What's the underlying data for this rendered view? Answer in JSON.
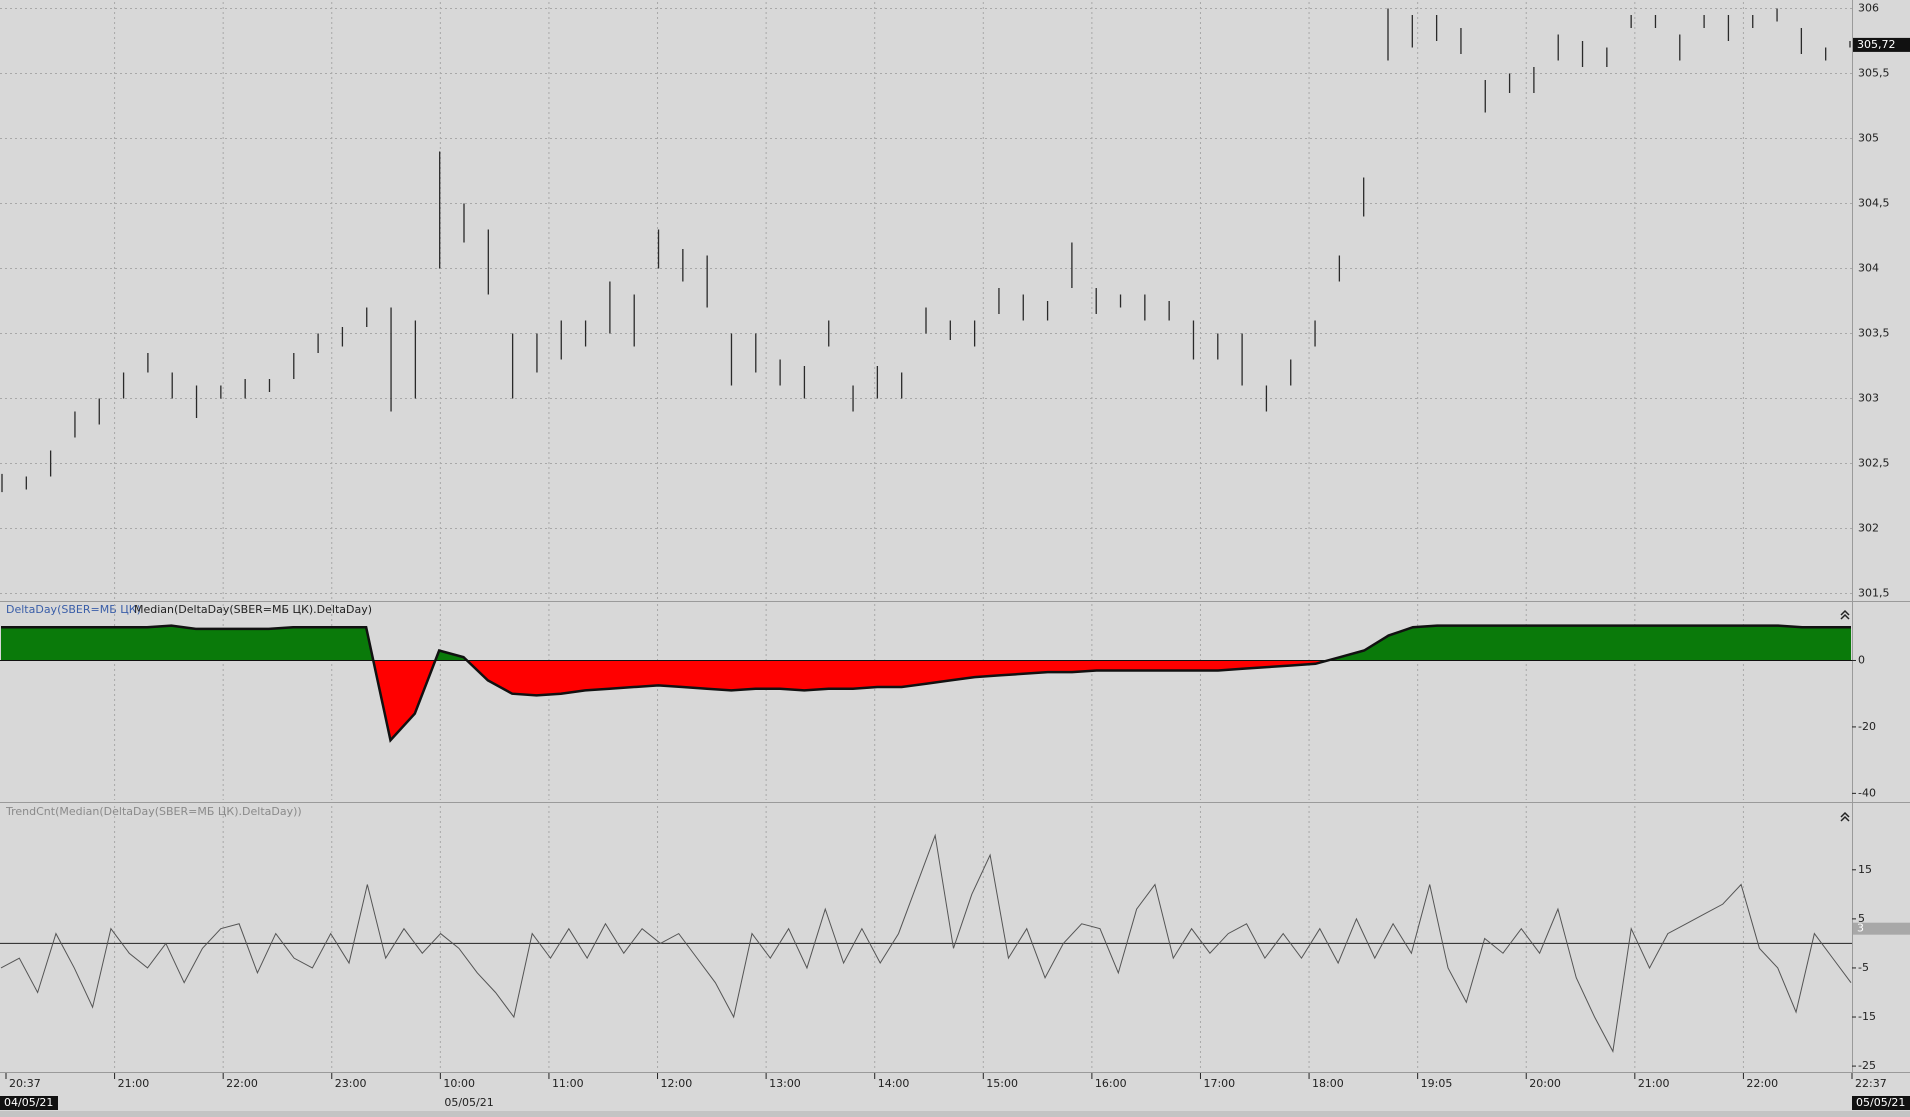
{
  "chart_data": [
    {
      "type": "range",
      "color": "#2a2a2a",
      "high": [
        302.42,
        302.4,
        302.6,
        302.9,
        303.0,
        303.2,
        303.35,
        303.2,
        303.1,
        303.1,
        303.15,
        303.15,
        303.35,
        303.5,
        303.55,
        303.7,
        303.7,
        303.6,
        304.9,
        304.5,
        304.3,
        303.5,
        303.5,
        303.6,
        303.6,
        303.9,
        303.8,
        304.3,
        304.15,
        304.1,
        303.5,
        303.5,
        303.3,
        303.25,
        303.6,
        303.1,
        303.25,
        303.2,
        303.7,
        303.6,
        303.6,
        303.85,
        303.8,
        303.75,
        304.2,
        303.85,
        303.8,
        303.8,
        303.75,
        303.6,
        303.5,
        303.5,
        303.1,
        303.3,
        303.6,
        304.1,
        304.7,
        306.0,
        305.95,
        305.95,
        305.85,
        305.45,
        305.5,
        305.55,
        305.8,
        305.75,
        305.7,
        305.95,
        305.95,
        305.8,
        305.95,
        305.95,
        305.95,
        306.0,
        305.85,
        305.7,
        305.75
      ],
      "low": [
        302.28,
        302.3,
        302.4,
        302.7,
        302.8,
        303.0,
        303.2,
        303.0,
        302.85,
        303.0,
        303.0,
        303.05,
        303.15,
        303.35,
        303.4,
        303.55,
        302.9,
        303.0,
        304.0,
        304.2,
        303.8,
        303.0,
        303.2,
        303.3,
        303.4,
        303.5,
        303.4,
        304.0,
        303.9,
        303.7,
        303.1,
        303.2,
        303.1,
        303.0,
        303.4,
        302.9,
        303.0,
        303.0,
        303.5,
        303.45,
        303.4,
        303.65,
        303.6,
        303.6,
        303.85,
        303.65,
        303.7,
        303.6,
        303.6,
        303.3,
        303.3,
        303.1,
        302.9,
        303.1,
        303.4,
        303.9,
        304.4,
        305.6,
        305.7,
        305.75,
        305.65,
        305.2,
        305.35,
        305.35,
        305.6,
        305.55,
        305.55,
        305.85,
        305.85,
        305.6,
        305.85,
        305.75,
        305.85,
        305.9,
        305.65,
        305.6,
        305.7
      ],
      "ylim": [
        301.45,
        306.05
      ],
      "yticks": [
        306,
        {
          "value": 305.5,
          "label": "305,5"
        },
        305,
        {
          "value": 304.5,
          "label": "304,5"
        },
        304,
        {
          "value": 303.5,
          "label": "303,5"
        },
        303,
        {
          "value": 302.5,
          "label": "302,5"
        },
        302,
        {
          "value": 301.5,
          "label": "301,5"
        }
      ],
      "last": 305.72,
      "last_label": "305,72",
      "grid": true
    },
    {
      "type": "area",
      "title": "DeltaDay(SBER=МБ ЦК)",
      "subtitle": "Median(DeltaDay(SBER=МБ ЦК).DeltaDay)",
      "positive_color": "#0a7a0a",
      "negative_color": "#ff0000",
      "values": [
        10,
        10,
        10,
        10,
        10,
        10,
        10,
        10.5,
        9.5,
        9.5,
        9.5,
        9.5,
        10,
        10,
        10,
        10,
        -24,
        -16,
        3,
        1,
        -6,
        -10,
        -10.5,
        -10,
        -9,
        -8.5,
        -8,
        -7.5,
        -8,
        -8.5,
        -9,
        -8.5,
        -8.5,
        -9,
        -8.5,
        -8.5,
        -8,
        -8,
        -7,
        -6,
        -5,
        -4.5,
        -4,
        -3.5,
        -3.5,
        -3,
        -3,
        -3,
        -3,
        -3,
        -3,
        -2.5,
        -2,
        -1.5,
        -1,
        1,
        3,
        7.5,
        10,
        10.5,
        10.5,
        10.5,
        10.5,
        10.5,
        10.5,
        10.5,
        10.5,
        10.5,
        10.5,
        10.5,
        10.5,
        10.5,
        10.5,
        10.5,
        10,
        10,
        10
      ],
      "ylim": [
        -42,
        17
      ],
      "yticks": [
        0,
        -20,
        -40
      ]
    },
    {
      "type": "line",
      "title": "TrendCnt(Median(DeltaDay(SBER=МБ ЦК).DeltaDay))",
      "color": "#555555",
      "values": [
        -5,
        -3,
        -10,
        2,
        -5,
        -13,
        3,
        -2,
        -5,
        0,
        -8,
        -1,
        3,
        4,
        -6,
        2,
        -3,
        -5,
        2,
        -4,
        12,
        -3,
        3,
        -2,
        2,
        -1,
        -6,
        -10,
        -15,
        2,
        -3,
        3,
        -3,
        4,
        -2,
        3,
        0,
        2,
        -3,
        -8,
        -15,
        2,
        -3,
        3,
        -5,
        7,
        -4,
        3,
        -4,
        2,
        12,
        22,
        -1,
        10,
        18,
        -3,
        3,
        -7,
        0,
        4,
        3,
        -6,
        7,
        12,
        -3,
        3,
        -2,
        2,
        4,
        -3,
        2,
        -3,
        3,
        -4,
        5,
        -3,
        4,
        -2,
        12,
        -5,
        -12,
        1,
        -2,
        3,
        -2,
        7,
        -7,
        -15,
        -22,
        3,
        -5,
        2,
        4,
        6,
        8,
        12,
        -1,
        -5,
        -14,
        2,
        -3,
        -8
      ],
      "ylim": [
        -26,
        28
      ],
      "yticks": [
        15,
        5,
        -5,
        -15,
        -25
      ],
      "last": 3
    }
  ],
  "time_axis": {
    "labels": [
      "20:37",
      "21:00",
      "22:00",
      "23:00",
      "10:00",
      "11:00",
      "12:00",
      "13:00",
      "14:00",
      "15:00",
      "16:00",
      "17:00",
      "18:00",
      "19:05",
      "20:00",
      "21:00",
      "22:00",
      "22:37"
    ],
    "dates": [
      "04/05/21",
      "05/05/21",
      "05/05/21"
    ]
  }
}
